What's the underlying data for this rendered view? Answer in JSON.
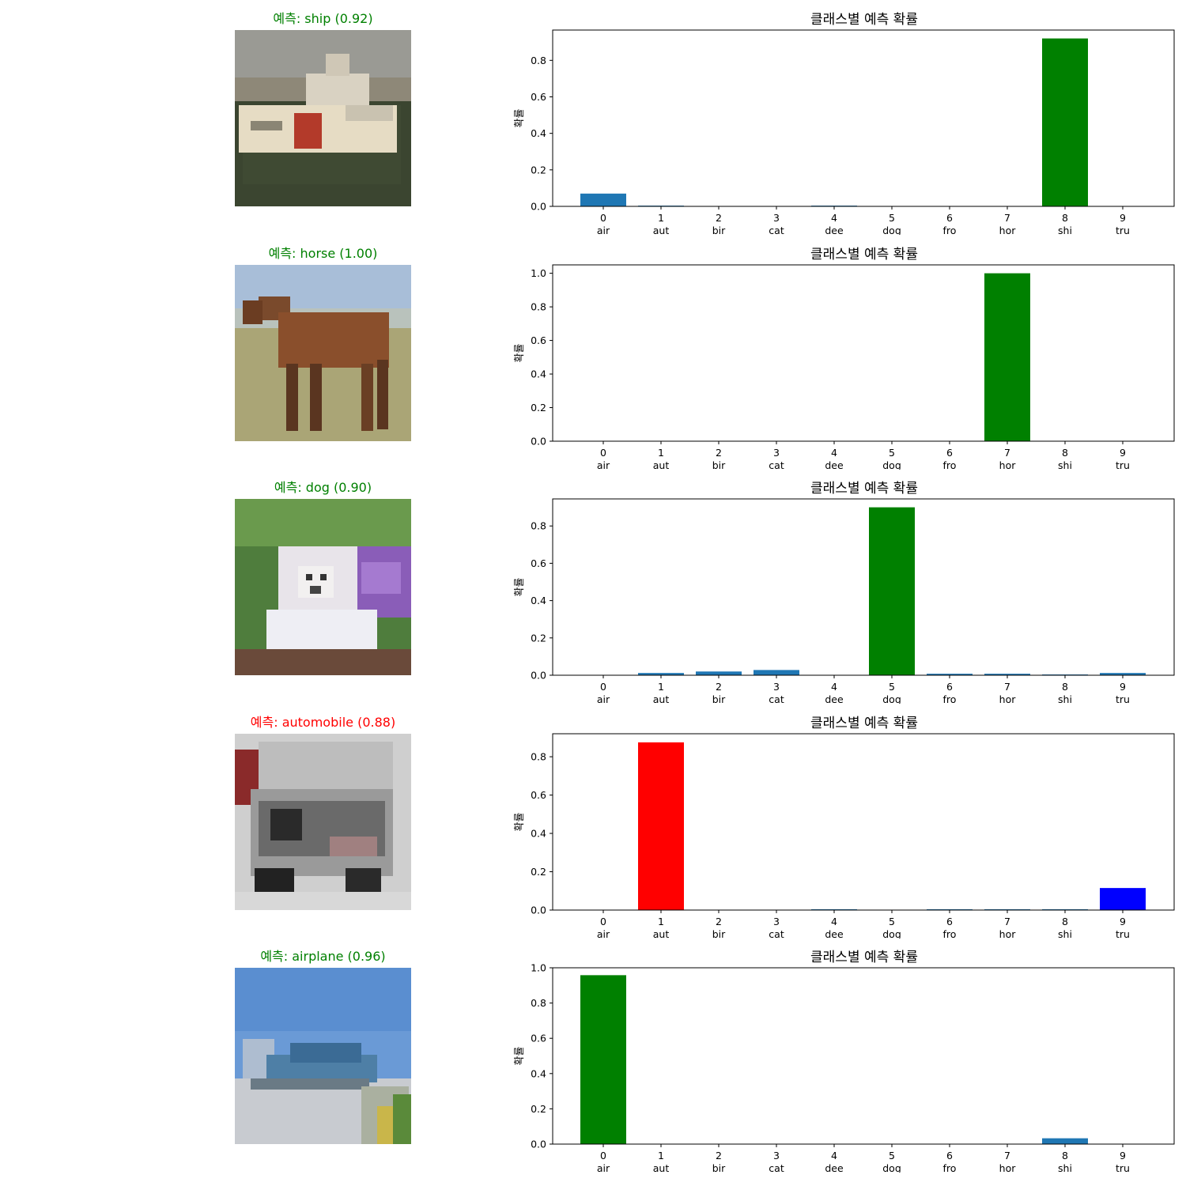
{
  "colors": {
    "default_bar": "#1f77b4",
    "correct": "#008000",
    "wrong": "#ff0000",
    "true_class": "#0000ff"
  },
  "class_ids": [
    "0",
    "1",
    "2",
    "3",
    "4",
    "5",
    "6",
    "7",
    "8",
    "9"
  ],
  "class_short": [
    "air",
    "aut",
    "bir",
    "cat",
    "dee",
    "dog",
    "fro",
    "hor",
    "shi",
    "tru"
  ],
  "chart_title": "클래스별 예측 확률",
  "y_label": "확률",
  "chart_data": [
    {
      "type": "bar",
      "image_title": "예측: ship (0.92)",
      "image_content": "ship",
      "title": "클래스별 예측 확률",
      "ylabel": "확률",
      "categories": [
        "0\nair",
        "1\naut",
        "2\nbir",
        "3\ncat",
        "4\ndee",
        "5\ndog",
        "6\nfro",
        "7\nhor",
        "8\nshi",
        "9\ntru"
      ],
      "values": [
        0.07,
        0.004,
        0.0,
        0.0,
        0.004,
        0.0,
        0.0,
        0.0,
        0.92,
        0.0
      ],
      "bar_colors": [
        "default",
        "default",
        "default",
        "default",
        "default",
        "default",
        "default",
        "default",
        "correct",
        "default"
      ],
      "ylim": [
        0,
        0.966
      ],
      "yticks": [
        0.0,
        0.2,
        0.4,
        0.6,
        0.8
      ],
      "title_color": "correct"
    },
    {
      "type": "bar",
      "image_title": "예측: horse (1.00)",
      "image_content": "horse",
      "title": "클래스별 예측 확률",
      "ylabel": "확률",
      "categories": [
        "0\nair",
        "1\naut",
        "2\nbir",
        "3\ncat",
        "4\ndee",
        "5\ndog",
        "6\nfro",
        "7\nhor",
        "8\nshi",
        "9\ntru"
      ],
      "values": [
        0.0,
        0.0,
        0.0,
        0.0,
        0.0,
        0.0,
        0.0,
        1.0,
        0.0,
        0.0
      ],
      "bar_colors": [
        "default",
        "default",
        "default",
        "default",
        "default",
        "default",
        "default",
        "correct",
        "default",
        "default"
      ],
      "ylim": [
        0,
        1.05
      ],
      "yticks": [
        0.0,
        0.2,
        0.4,
        0.6,
        0.8,
        1.0
      ],
      "title_color": "correct"
    },
    {
      "type": "bar",
      "image_title": "예측: dog (0.90)",
      "image_content": "dog",
      "title": "클래스별 예측 확률",
      "ylabel": "확률",
      "categories": [
        "0\nair",
        "1\naut",
        "2\nbir",
        "3\ncat",
        "4\ndee",
        "5\ndog",
        "6\nfro",
        "7\nhor",
        "8\nshi",
        "9\ntru"
      ],
      "values": [
        0.0,
        0.012,
        0.02,
        0.028,
        0.0,
        0.9,
        0.008,
        0.008,
        0.004,
        0.012
      ],
      "bar_colors": [
        "default",
        "default",
        "default",
        "default",
        "default",
        "correct",
        "default",
        "default",
        "default",
        "default"
      ],
      "ylim": [
        0,
        0.945
      ],
      "yticks": [
        0.0,
        0.2,
        0.4,
        0.6,
        0.8
      ],
      "title_color": "correct"
    },
    {
      "type": "bar",
      "image_title": "예측: automobile (0.88)",
      "image_content": "truck",
      "title": "클래스별 예측 확률",
      "ylabel": "확률",
      "categories": [
        "0\nair",
        "1\naut",
        "2\nbir",
        "3\ncat",
        "4\ndee",
        "5\ndog",
        "6\nfro",
        "7\nhor",
        "8\nshi",
        "9\ntru"
      ],
      "values": [
        0.0,
        0.875,
        0.0,
        0.0,
        0.004,
        0.0,
        0.004,
        0.004,
        0.004,
        0.115
      ],
      "bar_colors": [
        "default",
        "wrong",
        "default",
        "default",
        "default",
        "default",
        "default",
        "default",
        "default",
        "true_class"
      ],
      "ylim": [
        0,
        0.92
      ],
      "yticks": [
        0.0,
        0.2,
        0.4,
        0.6,
        0.8
      ],
      "title_color": "wrong"
    },
    {
      "type": "bar",
      "image_title": "예측: airplane (0.96)",
      "image_content": "airplane",
      "title": "클래스별 예측 확률",
      "ylabel": "확률",
      "categories": [
        "0\nair",
        "1\naut",
        "2\nbir",
        "3\ncat",
        "4\ndee",
        "5\ndog",
        "6\nfro",
        "7\nhor",
        "8\nshi",
        "9\ntru"
      ],
      "values": [
        0.958,
        0.0,
        0.0,
        0.0,
        0.0,
        0.0,
        0.0,
        0.0,
        0.033,
        0.0
      ],
      "bar_colors": [
        "correct",
        "default",
        "default",
        "default",
        "default",
        "default",
        "default",
        "default",
        "default",
        "default"
      ],
      "ylim": [
        0,
        1.0
      ],
      "yticks": [
        0.0,
        0.2,
        0.4,
        0.6,
        0.8,
        1.0
      ],
      "title_color": "correct"
    }
  ]
}
